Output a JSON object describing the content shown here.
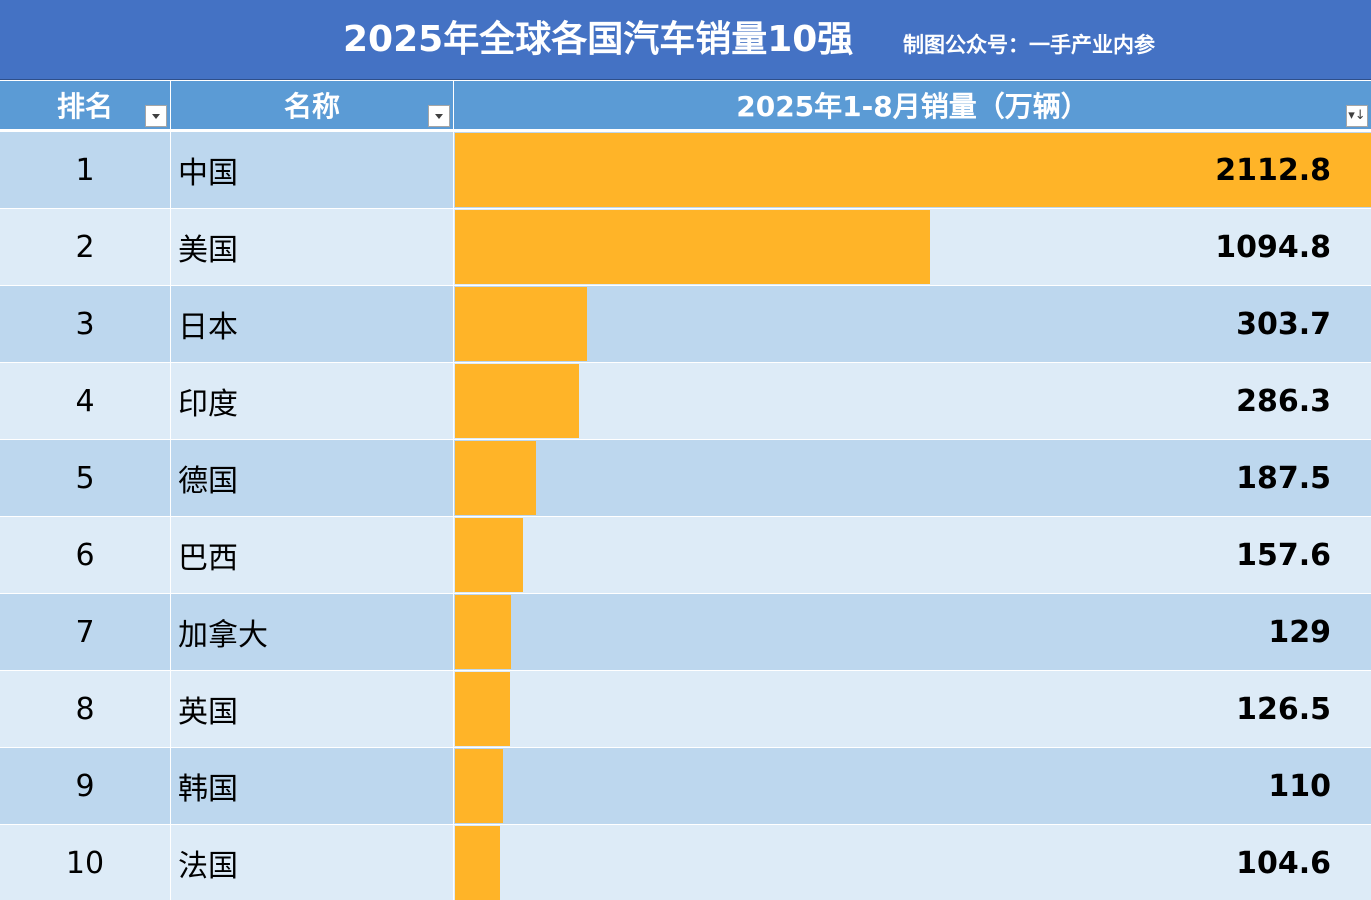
{
  "title": "2025年全球各国汽车销量10强",
  "subtitle": "制图公众号：一手产业内参",
  "headers": {
    "rank": "排名",
    "name": "名称",
    "sales": "2025年1-8月销量（万辆）"
  },
  "colors": {
    "title_bg": "#4472C4",
    "header_bg": "#5B9BD5",
    "row_odd": "#BDD7EE",
    "row_even": "#DDEBF7",
    "bar": "#FFB428"
  },
  "chart_data": {
    "type": "bar",
    "title": "2025年全球各国汽车销量10强",
    "categories": [
      "中国",
      "美国",
      "日本",
      "印度",
      "德国",
      "巴西",
      "加拿大",
      "英国",
      "韩国",
      "法国"
    ],
    "ranks": [
      "1",
      "2",
      "3",
      "4",
      "5",
      "6",
      "7",
      "8",
      "9",
      "10"
    ],
    "values": [
      2112.8,
      1094.8,
      303.7,
      286.3,
      187.5,
      157.6,
      129,
      126.5,
      110,
      104.6
    ],
    "value_labels": [
      "2112.8",
      "1094.8",
      "303.7",
      "286.3",
      "187.5",
      "157.6",
      "129",
      "126.5",
      "110",
      "104.6"
    ],
    "ylabel": "2025年1-8月销量（万辆）",
    "orientation": "horizontal",
    "xlim": [
      0,
      2112.8
    ]
  }
}
